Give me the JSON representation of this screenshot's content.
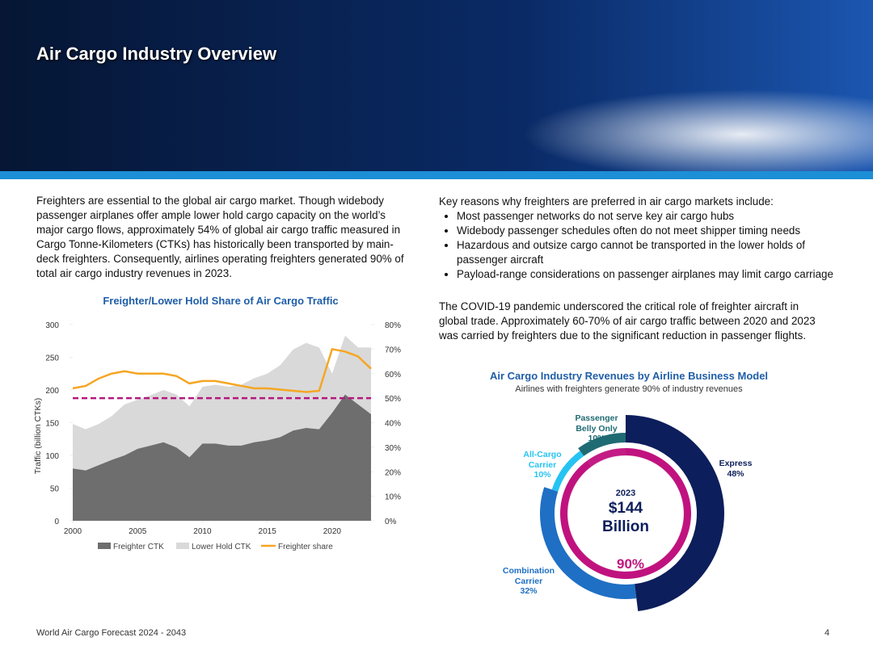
{
  "header": {
    "title": "Air Cargo Industry Overview"
  },
  "left_text": "Freighters are essential to the global air cargo market. Though widebody passenger airplanes offer ample lower hold cargo capacity on the world’s major cargo flows, approximately 54% of global air cargo traffic measured in Cargo Tonne-Kilometers (CTKs) has historically been transported by main-deck freighters. Consequently, airlines operating freighters generated 90% of total air cargo industry revenues in 2023.",
  "right_intro": "Key reasons why freighters are preferred in air cargo markets include:",
  "bullets": [
    "Most passenger networks do not serve key air cargo hubs",
    "Widebody passenger schedules often do not meet shipper timing needs",
    "Hazardous and outsize cargo cannot be transported in the lower holds of passenger aircraft",
    "Payload-range considerations on passenger airplanes may limit cargo carriage"
  ],
  "right_text": "The COVID-19 pandemic underscored the critical role of freighter aircraft in global trade. Approximately 60-70% of air cargo traffic between 2020 and 2023 was carried by freighters due to the significant reduction in passenger flights.",
  "chart_data": [
    {
      "type": "area",
      "title": "Freighter/Lower Hold Share of Air Cargo Traffic",
      "y_label": "Traffic (billion CTKs)",
      "x": [
        2000,
        2001,
        2002,
        2003,
        2004,
        2005,
        2006,
        2007,
        2008,
        2009,
        2010,
        2011,
        2012,
        2013,
        2014,
        2015,
        2016,
        2017,
        2018,
        2019,
        2020,
        2021,
        2022,
        2023
      ],
      "series": [
        {
          "name": "Freighter CTK",
          "color": "#6e6e6e",
          "values": [
            80,
            77,
            85,
            93,
            100,
            110,
            115,
            120,
            112,
            97,
            118,
            118,
            115,
            115,
            120,
            123,
            128,
            138,
            142,
            140,
            165,
            193,
            178,
            163
          ]
        },
        {
          "name": "Lower Hold CTK",
          "color": "#d9d9d9",
          "values": [
            68,
            63,
            63,
            67,
            78,
            75,
            77,
            80,
            81,
            78,
            87,
            90,
            90,
            93,
            98,
            102,
            110,
            124,
            130,
            125,
            60,
            90,
            87,
            102
          ]
        },
        {
          "name": "Freighter share",
          "color": "#f5a623",
          "axis": "y2",
          "values": [
            54,
            55,
            58,
            60,
            61,
            60,
            60,
            60,
            59,
            56,
            57,
            57,
            56,
            55,
            54,
            54,
            53.5,
            53,
            52.5,
            53,
            70,
            69,
            67,
            62
          ]
        }
      ],
      "y2_reference": 50,
      "reference_color": "#b5177c",
      "xlim": [
        2000,
        2023
      ],
      "xticks": [
        2000,
        2005,
        2010,
        2015,
        2020
      ],
      "ylim": [
        0,
        300
      ],
      "yticks": [
        0,
        50,
        100,
        150,
        200,
        250,
        300
      ],
      "y2lim": [
        0,
        80
      ],
      "y2ticks": [
        {
          "value": 0,
          "label": "0%"
        },
        {
          "value": 10,
          "label": "10%"
        },
        {
          "value": 20,
          "label": "20%"
        },
        {
          "value": 30,
          "label": "30%"
        },
        {
          "value": 40,
          "label": "40%"
        },
        {
          "value": 50,
          "label": "50%"
        },
        {
          "value": 60,
          "label": "60%"
        },
        {
          "value": 70,
          "label": "70%"
        },
        {
          "value": 80,
          "label": "80%"
        }
      ]
    },
    {
      "type": "donut",
      "title": "Air Cargo Industry Revenues by Airline Business Model",
      "subtitle": "Airlines with freighters generate 90% of industry revenues",
      "categories": [
        "Express",
        "Combination Carrier",
        "All-Cargo Carrier",
        "Passenger Belly Only"
      ],
      "values": [
        48,
        32,
        10,
        10
      ],
      "value_labels": [
        "48%",
        "32%",
        "10%",
        "10%"
      ],
      "colors": [
        "#0c1e5b",
        "#1f6fc4",
        "#27c3f2",
        "#1f6b73"
      ],
      "highlight": {
        "value": 90,
        "label": "90%",
        "color": "#c0127f"
      },
      "center_year": "2023",
      "center_value": "$144 Billion"
    }
  ],
  "footer": {
    "source": "World Air Cargo Forecast 2024 - 2043",
    "page": "4"
  }
}
